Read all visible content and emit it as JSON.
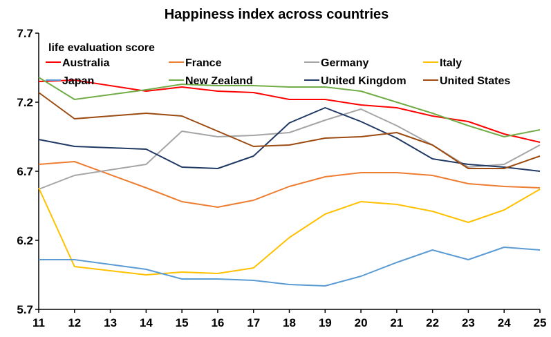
{
  "chart_data": {
    "type": "line",
    "title": "Happiness index across countries",
    "ylabel": "life evaluation score",
    "xlabel": "",
    "x": [
      11,
      12,
      13,
      14,
      15,
      16,
      17,
      18,
      19,
      20,
      21,
      22,
      23,
      24,
      25
    ],
    "ylim": [
      5.7,
      7.7
    ],
    "yticks": [
      5.7,
      6.2,
      6.7,
      7.2,
      7.7
    ],
    "grid": false,
    "legend": "top",
    "series": [
      {
        "name": "Australia",
        "color": "#ff0000",
        "values": [
          7.35,
          7.36,
          null,
          7.28,
          7.31,
          7.28,
          7.27,
          7.22,
          7.22,
          7.18,
          7.16,
          7.1,
          7.06,
          6.97,
          6.91
        ]
      },
      {
        "name": "France",
        "color": "#ed7d31",
        "values": [
          6.75,
          6.77,
          null,
          6.58,
          6.48,
          6.44,
          6.49,
          6.59,
          6.66,
          6.69,
          6.69,
          6.67,
          6.61,
          6.59,
          6.58
        ]
      },
      {
        "name": "Germany",
        "color": "#a5a5a5",
        "values": [
          6.57,
          6.67,
          null,
          6.75,
          6.99,
          6.95,
          6.96,
          6.98,
          7.07,
          7.15,
          7.03,
          6.89,
          6.73,
          6.75,
          6.89
        ]
      },
      {
        "name": "Italy",
        "color": "#ffc000",
        "values": [
          6.58,
          6.01,
          null,
          5.95,
          5.97,
          5.96,
          6.0,
          6.22,
          6.39,
          6.48,
          6.46,
          6.41,
          6.33,
          6.42,
          6.57
        ]
      },
      {
        "name": "Japan",
        "color": "#5b9bd5",
        "values": [
          6.06,
          6.06,
          null,
          5.99,
          5.92,
          5.92,
          5.91,
          5.88,
          5.87,
          5.94,
          6.04,
          6.13,
          6.06,
          6.15,
          6.13
        ]
      },
      {
        "name": "New Zealand",
        "color": "#70ad47",
        "values": [
          7.38,
          7.22,
          null,
          7.29,
          7.33,
          7.32,
          7.32,
          7.31,
          7.31,
          7.28,
          7.2,
          7.12,
          7.03,
          6.95,
          7.0
        ]
      },
      {
        "name": "United Kingdom",
        "color": "#203864",
        "values": [
          6.93,
          6.88,
          null,
          6.86,
          6.73,
          6.72,
          6.81,
          7.05,
          7.16,
          7.06,
          6.94,
          6.79,
          6.75,
          6.73,
          6.7
        ]
      },
      {
        "name": "United States",
        "color": "#9c4a10",
        "values": [
          7.27,
          7.08,
          null,
          7.12,
          7.1,
          6.99,
          6.88,
          6.89,
          6.94,
          6.95,
          6.98,
          6.89,
          6.72,
          6.72,
          6.81
        ]
      }
    ]
  }
}
